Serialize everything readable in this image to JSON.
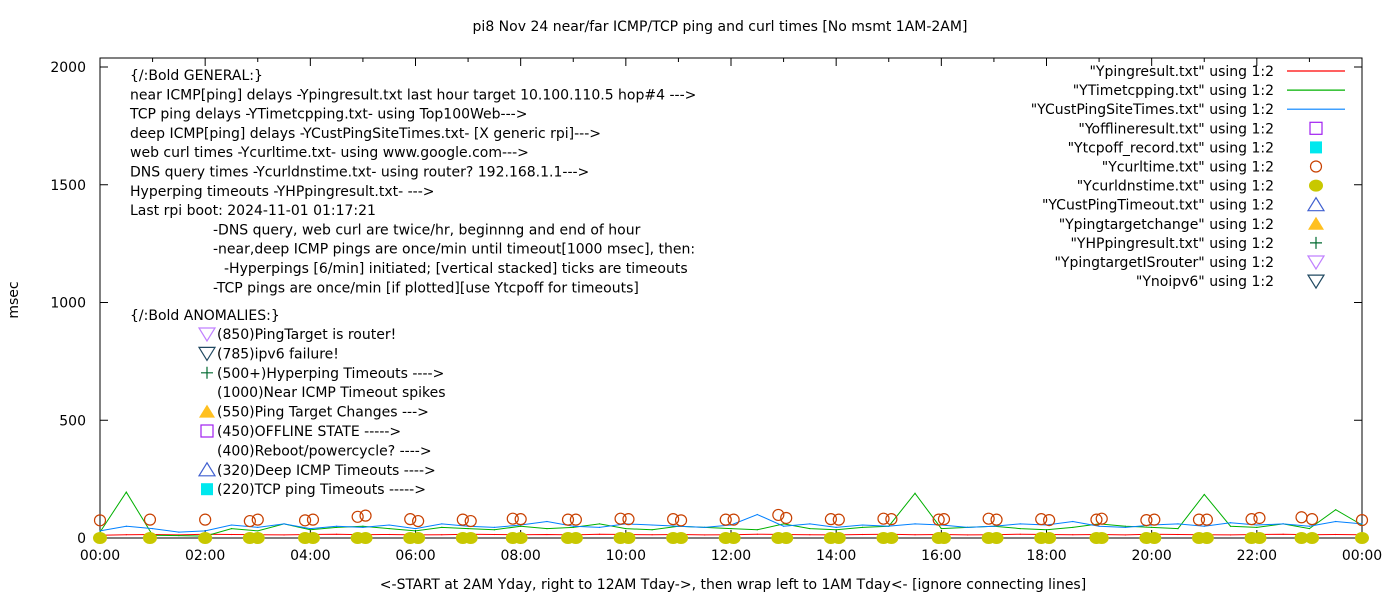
{
  "chart_data": {
    "type": "line",
    "title": "pi8 Nov 24  near/far ICMP/TCP ping and curl times [No msmt 1AM-2AM]",
    "xlabel": "<-START at 2AM Yday, right to 12AM Tday->, then wrap left to 1AM Tday<- [ignore connecting lines]",
    "ylabel": "msec",
    "xlim_hours": [
      0,
      24
    ],
    "ylim": [
      0,
      2050
    ],
    "x_tick_labels": [
      "00:00",
      "02:00",
      "04:00",
      "06:00",
      "08:00",
      "10:00",
      "12:00",
      "14:00",
      "16:00",
      "18:00",
      "20:00",
      "22:00",
      "00:00"
    ],
    "y_tick_labels": [
      "0",
      "500",
      "1000",
      "1500",
      "2000"
    ],
    "y_ticks": [
      0,
      500,
      1000,
      1500,
      2000
    ],
    "grid": false,
    "legend_position": "top-right",
    "x_hours": [
      0,
      0.5,
      1,
      1.5,
      2,
      2.5,
      3,
      3.5,
      4,
      4.5,
      5,
      5.5,
      6,
      6.5,
      7,
      7.5,
      8,
      8.5,
      9,
      9.5,
      10,
      10.5,
      11,
      11.5,
      12,
      12.5,
      13,
      13.5,
      14,
      14.5,
      15,
      15.5,
      16,
      16.5,
      17,
      17.5,
      18,
      18.5,
      19,
      19.5,
      20,
      20.5,
      21,
      21.5,
      22,
      22.5,
      23,
      23.5,
      24
    ],
    "series": [
      {
        "name": "\"Ypingresult.txt\" using 1:2",
        "color": "#ff0000",
        "style": "line",
        "values": [
          12,
          14,
          15,
          13,
          16,
          15,
          14,
          13,
          15,
          16,
          14,
          15,
          13,
          14,
          16,
          15,
          14,
          15,
          13,
          16,
          15,
          14,
          15,
          13,
          14,
          16,
          15,
          14,
          13,
          15,
          16,
          14,
          15,
          13,
          14,
          16,
          15,
          14,
          15,
          13,
          16,
          15,
          14,
          13,
          15,
          16,
          14,
          15,
          14
        ]
      },
      {
        "name": "\"YTimetcpping.txt\" using 1:2",
        "color": "#00b000",
        "style": "line",
        "values": [
          25,
          195,
          12,
          10,
          8,
          40,
          30,
          60,
          35,
          45,
          50,
          40,
          30,
          45,
          40,
          35,
          50,
          40,
          45,
          60,
          40,
          35,
          50,
          45,
          40,
          35,
          60,
          40,
          35,
          45,
          50,
          190,
          40,
          45,
          50,
          40,
          35,
          45,
          60,
          50,
          45,
          40,
          185,
          50,
          45,
          60,
          40,
          120,
          55
        ]
      },
      {
        "name": "\"YCustPingSiteTimes.txt\" using 1:2",
        "color": "#0080ff",
        "style": "line",
        "values": [
          30,
          50,
          40,
          25,
          30,
          55,
          45,
          60,
          40,
          50,
          45,
          55,
          40,
          60,
          50,
          45,
          55,
          70,
          50,
          45,
          60,
          55,
          50,
          45,
          55,
          100,
          50,
          60,
          45,
          55,
          50,
          60,
          55,
          45,
          50,
          60,
          55,
          70,
          50,
          45,
          55,
          60,
          50,
          65,
          55,
          60,
          50,
          70,
          60
        ]
      },
      {
        "name": "\"Yofflineresult.txt\" using 1:2",
        "color": "#a020f0",
        "style": "open-square",
        "points": []
      },
      {
        "name": "\"Ytcpoff_record.txt\" using 1:2",
        "color": "#00e8ee",
        "style": "filled-square",
        "points": []
      },
      {
        "name": "\"Ycurltime.txt\" using 1:2",
        "color": "#c84000",
        "style": "open-circle",
        "points": [
          [
            0.0,
            75
          ],
          [
            0.95,
            78
          ],
          [
            2.0,
            78
          ],
          [
            2.85,
            72
          ],
          [
            3.0,
            78
          ],
          [
            3.9,
            75
          ],
          [
            4.05,
            78
          ],
          [
            4.9,
            90
          ],
          [
            5.05,
            95
          ],
          [
            5.9,
            80
          ],
          [
            6.05,
            72
          ],
          [
            6.9,
            78
          ],
          [
            7.05,
            72
          ],
          [
            7.85,
            82
          ],
          [
            8.0,
            80
          ],
          [
            8.9,
            78
          ],
          [
            9.05,
            78
          ],
          [
            9.9,
            82
          ],
          [
            10.05,
            80
          ],
          [
            10.9,
            80
          ],
          [
            11.05,
            75
          ],
          [
            11.9,
            78
          ],
          [
            12.05,
            78
          ],
          [
            12.9,
            98
          ],
          [
            13.05,
            85
          ],
          [
            13.9,
            80
          ],
          [
            14.05,
            78
          ],
          [
            14.9,
            82
          ],
          [
            15.05,
            80
          ],
          [
            15.95,
            78
          ],
          [
            16.05,
            80
          ],
          [
            16.9,
            82
          ],
          [
            17.05,
            78
          ],
          [
            17.9,
            80
          ],
          [
            18.05,
            76
          ],
          [
            18.95,
            78
          ],
          [
            19.05,
            82
          ],
          [
            19.9,
            76
          ],
          [
            20.05,
            78
          ],
          [
            20.9,
            78
          ],
          [
            21.05,
            78
          ],
          [
            21.9,
            80
          ],
          [
            22.05,
            85
          ],
          [
            22.85,
            88
          ],
          [
            23.05,
            80
          ],
          [
            24.0,
            76
          ]
        ]
      },
      {
        "name": "\"Ycurldnstime.txt\" using 1:2",
        "color": "#c8c800",
        "style": "filled-circle",
        "points": [
          [
            0.0,
            0
          ],
          [
            0.95,
            0
          ],
          [
            2.0,
            0
          ],
          [
            2.85,
            0
          ],
          [
            3.0,
            0
          ],
          [
            3.9,
            0
          ],
          [
            4.05,
            0
          ],
          [
            4.9,
            0
          ],
          [
            5.05,
            0
          ],
          [
            5.9,
            0
          ],
          [
            6.05,
            0
          ],
          [
            6.9,
            0
          ],
          [
            7.05,
            0
          ],
          [
            7.85,
            0
          ],
          [
            8.0,
            0
          ],
          [
            8.9,
            0
          ],
          [
            9.05,
            0
          ],
          [
            9.9,
            0
          ],
          [
            10.05,
            0
          ],
          [
            10.9,
            0
          ],
          [
            11.05,
            0
          ],
          [
            11.9,
            0
          ],
          [
            12.05,
            0
          ],
          [
            12.9,
            0
          ],
          [
            13.05,
            0
          ],
          [
            13.9,
            0
          ],
          [
            14.05,
            0
          ],
          [
            14.9,
            0
          ],
          [
            15.05,
            0
          ],
          [
            15.95,
            0
          ],
          [
            16.05,
            0
          ],
          [
            16.9,
            0
          ],
          [
            17.05,
            0
          ],
          [
            17.9,
            0
          ],
          [
            18.05,
            0
          ],
          [
            18.95,
            0
          ],
          [
            19.05,
            0
          ],
          [
            19.9,
            0
          ],
          [
            20.05,
            0
          ],
          [
            20.9,
            0
          ],
          [
            21.05,
            0
          ],
          [
            21.9,
            0
          ],
          [
            22.05,
            0
          ],
          [
            22.85,
            0
          ],
          [
            23.05,
            0
          ],
          [
            24.0,
            0
          ]
        ]
      },
      {
        "name": "\"YCustPingTimeout.txt\" using 1:2",
        "color": "#4060d0",
        "style": "open-triangle-up",
        "points": []
      },
      {
        "name": "\"Ypingtargetchange\" using 1:2",
        "color": "#ffc020",
        "style": "filled-triangle-up",
        "points": []
      },
      {
        "name": "\"YHPpingresult.txt\" using 1:2",
        "color": "#006a30",
        "style": "plus",
        "points": []
      },
      {
        "name": "\"YpingtargetISrouter\" using 1:2",
        "color": "#c080ff",
        "style": "open-triangle-down",
        "points": []
      },
      {
        "name": "\"Ynoipv6\" using 1:2",
        "color": "#204860",
        "style": "open-triangle-down",
        "points": []
      }
    ],
    "annotations": {
      "general": [
        {
          "text": "{/:Bold GENERAL:}",
          "indent": 0
        },
        {
          "text": "near ICMP[ping] delays -Ypingresult.txt last hour target 10.100.110.5 hop#4 --->",
          "indent": 0
        },
        {
          "text": "TCP ping delays -YTimetcpping.txt- using Top100Web--->",
          "indent": 0
        },
        {
          "text": "deep ICMP[ping] delays -YCustPingSiteTimes.txt- [X generic rpi]--->",
          "indent": 0
        },
        {
          "text": "web curl times -Ycurltime.txt- using www.google.com--->",
          "indent": 0
        },
        {
          "text": "DNS query times -Ycurldnstime.txt- using router? 192.168.1.1--->",
          "indent": 0
        },
        {
          "text": "Hyperping timeouts -YHPpingresult.txt- --->",
          "indent": 0
        },
        {
          "text": "Last rpi boot: 2024-11-01 01:17:21",
          "indent": 0
        },
        {
          "text": "-DNS query, web curl are twice/hr, beginnng and end of hour",
          "indent": 1
        },
        {
          "text": "-near,deep ICMP pings are once/min until timeout[1000 msec], then:",
          "indent": 1
        },
        {
          "text": "-Hyperpings [6/min] initiated; [vertical stacked] ticks are timeouts",
          "indent": 2
        },
        {
          "text": "-TCP pings are once/min [if plotted][use Ytcpoff for timeouts]",
          "indent": 1
        }
      ],
      "anomalies_title": "{/:Bold ANOMALIES:}",
      "anomalies": [
        {
          "text": "(850)PingTarget is router!",
          "marker": "open-triangle-down",
          "color": "#c080ff"
        },
        {
          "text": "(785)ipv6 failure!",
          "marker": "open-triangle-down",
          "color": "#204860"
        },
        {
          "text": "(500+)Hyperping Timeouts ---->",
          "marker": "plus",
          "color": "#006a30"
        },
        {
          "text": "(1000)Near ICMP Timeout spikes",
          "marker": "none",
          "color": "#000000"
        },
        {
          "text": "(550)Ping Target Changes --->",
          "marker": "filled-triangle-up",
          "color": "#ffc020"
        },
        {
          "text": "(450)OFFLINE STATE ----->",
          "marker": "open-square",
          "color": "#a020f0"
        },
        {
          "text": "(400)Reboot/powercycle? ---->",
          "marker": "none",
          "color": "#000000"
        },
        {
          "text": "(320)Deep ICMP Timeouts ---->",
          "marker": "open-triangle-up",
          "color": "#4060d0"
        },
        {
          "text": "(220)TCP ping Timeouts ----->",
          "marker": "filled-square",
          "color": "#00e8ee"
        }
      ]
    }
  }
}
